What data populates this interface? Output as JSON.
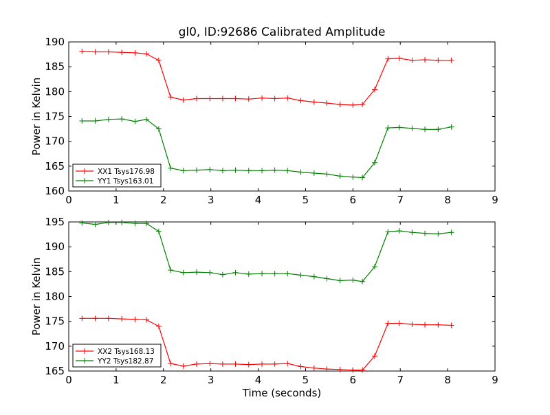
{
  "title": "gl0, ID:92686 Calibrated Amplitude",
  "chart_data": [
    {
      "type": "line",
      "ylabel": "Power in Kelvin",
      "xlabel": "",
      "xlim": [
        0,
        9
      ],
      "ylim": [
        160,
        190
      ],
      "xticks": [
        "0",
        "1",
        "2",
        "3",
        "4",
        "5",
        "6",
        "7",
        "8",
        "9"
      ],
      "yticks": [
        "160",
        "165",
        "170",
        "175",
        "180",
        "185",
        "190"
      ],
      "legend_position": "lower-left",
      "x": [
        0.28,
        0.56,
        0.84,
        1.12,
        1.4,
        1.64,
        1.9,
        2.15,
        2.42,
        2.7,
        2.98,
        3.25,
        3.52,
        3.8,
        4.08,
        4.35,
        4.62,
        4.9,
        5.18,
        5.45,
        5.73,
        6.0,
        6.2,
        6.46,
        6.74,
        6.98,
        7.25,
        7.52,
        7.8,
        8.08
      ],
      "series": [
        {
          "name": "XX1 Tsys176.98",
          "color": "#ff0000",
          "values": [
            188.1,
            188.0,
            188.0,
            187.9,
            187.8,
            187.6,
            186.3,
            178.9,
            178.3,
            178.6,
            178.6,
            178.6,
            178.6,
            178.5,
            178.7,
            178.6,
            178.7,
            178.2,
            177.9,
            177.7,
            177.4,
            177.3,
            177.4,
            180.4,
            186.6,
            186.7,
            186.3,
            186.4,
            186.3,
            186.3
          ]
        },
        {
          "name": "YY1 Tsys163.01",
          "color": "#008000",
          "values": [
            174.1,
            174.1,
            174.4,
            174.5,
            174.0,
            174.4,
            172.5,
            164.6,
            164.1,
            164.2,
            164.3,
            164.1,
            164.2,
            164.1,
            164.1,
            164.2,
            164.1,
            163.8,
            163.6,
            163.4,
            163.0,
            162.8,
            162.7,
            165.7,
            172.7,
            172.8,
            172.6,
            172.4,
            172.4,
            172.9
          ]
        }
      ]
    },
    {
      "type": "line",
      "ylabel": "Power in Kelvin",
      "xlabel": "Time (seconds)",
      "xlim": [
        0,
        9
      ],
      "ylim": [
        165,
        195
      ],
      "xticks": [
        "0",
        "1",
        "2",
        "3",
        "4",
        "5",
        "6",
        "7",
        "8",
        "9"
      ],
      "yticks": [
        "165",
        "170",
        "175",
        "180",
        "185",
        "190",
        "195"
      ],
      "legend_position": "lower-left",
      "x": [
        0.28,
        0.56,
        0.84,
        1.12,
        1.4,
        1.64,
        1.9,
        2.15,
        2.42,
        2.7,
        2.98,
        3.25,
        3.52,
        3.8,
        4.08,
        4.35,
        4.62,
        4.9,
        5.18,
        5.45,
        5.73,
        6.0,
        6.2,
        6.46,
        6.74,
        6.98,
        7.25,
        7.52,
        7.8,
        8.08
      ],
      "series": [
        {
          "name": "XX2 Tsys168.13",
          "color": "#ff0000",
          "values": [
            175.6,
            175.6,
            175.6,
            175.5,
            175.4,
            175.3,
            174.0,
            166.5,
            166.0,
            166.4,
            166.5,
            166.4,
            166.4,
            166.3,
            166.4,
            166.4,
            166.5,
            165.9,
            165.6,
            165.4,
            165.3,
            165.2,
            165.2,
            168.0,
            174.6,
            174.6,
            174.4,
            174.3,
            174.3,
            174.2
          ]
        },
        {
          "name": "YY2 Tsys182.87",
          "color": "#008000",
          "values": [
            194.8,
            194.5,
            194.9,
            194.9,
            194.7,
            194.7,
            193.1,
            185.3,
            184.8,
            184.9,
            184.8,
            184.4,
            184.8,
            184.5,
            184.6,
            184.6,
            184.6,
            184.3,
            184.0,
            183.6,
            183.2,
            183.3,
            183.0,
            186.0,
            193.0,
            193.2,
            192.9,
            192.7,
            192.6,
            192.9
          ]
        }
      ]
    }
  ]
}
